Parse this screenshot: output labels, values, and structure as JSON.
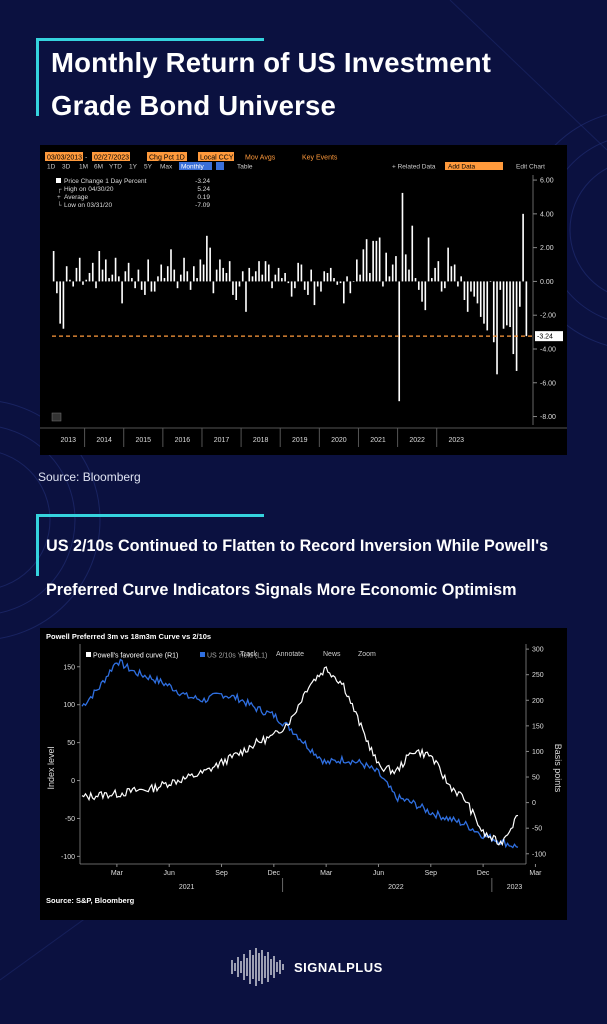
{
  "chart1": {
    "title": "Monthly Return of US Investment Grade Bond Universe",
    "title_line1": "Monthly Return of US Investment",
    "title_line2": "Grade Bond Universe",
    "source": "Source: Bloomberg",
    "toolbar": {
      "start_date": "03/03/2013",
      "end_date": "02/27/2023",
      "metric": "Chg Pct 1D",
      "currency": "Local CCY",
      "mov_avgs": "Mov Avgs",
      "key_events": "Key Events",
      "periods": [
        "1D",
        "3D",
        "1M",
        "6M",
        "YTD",
        "1Y",
        "5Y",
        "Max"
      ],
      "frequency": "Monthly",
      "table": "Table",
      "related_data": "+ Related Data",
      "add_data": "Add Data",
      "edit_chart": "Edit Chart"
    },
    "legend": [
      {
        "label": "Price Change 1 Day Percent",
        "value": "-3.24"
      },
      {
        "label": "High on 04/30/20",
        "value": "5.24"
      },
      {
        "label": "Average",
        "value": "0.19"
      },
      {
        "label": "Low on 03/31/20",
        "value": "-7.09"
      }
    ],
    "last_value_label": "-3.24",
    "colors": {
      "bars": "#ffffff",
      "reference_line": "#ff9a3c",
      "toolbar_orange": "#ff9a3c",
      "toolbar_blue": "#3a6fd8"
    }
  },
  "chart2": {
    "title": "US 2/10s Continued to Flatten to Record Inversion While Powell's Preferred Curve Indicators Signals More Economic Optimism",
    "title_line1": "US 2/10s Continued to Flatten to Record Inversion While Powell's",
    "title_line2": "Preferred Curve Indicators Signals More Economic Optimism",
    "panel_title": "Powell Preferred 3m vs 18m3m Curve vs 2/10s",
    "legend": [
      {
        "label": "Powell's favored curve (R1)",
        "color": "#ffffff"
      },
      {
        "label": "US 2/10s Yield (L1)",
        "color": "#2f6fe0"
      }
    ],
    "toolbar": [
      "Track",
      "Annotate",
      "News",
      "Zoom"
    ],
    "ylabel_left": "Index level",
    "ylabel_right": "Basis points",
    "source": "Source: S&P, Bloomberg",
    "colors": {
      "powell": "#ffffff",
      "us210": "#2f6fe0"
    }
  },
  "brand": {
    "name": "SIGNALPLUS"
  },
  "chart_data": [
    {
      "type": "bar",
      "title": "Monthly Return of US Investment Grade Bond Universe",
      "ylabel": "",
      "xlabel": "",
      "x_tick_labels": [
        "2013",
        "2014",
        "2015",
        "2016",
        "2017",
        "2018",
        "2019",
        "2020",
        "2021",
        "2022",
        "2023"
      ],
      "y_tick_labels": [
        "6.00",
        "4.00",
        "2.00",
        "0.00",
        "-2.00",
        "-4.00",
        "-6.00",
        "-8.00"
      ],
      "ylim": [
        -8.5,
        6.3
      ],
      "reference_line": -3.24,
      "series": [
        {
          "values": [
            1.8,
            -0.7,
            -2.5,
            -2.8,
            0.9,
            0.1,
            -0.3,
            0.8,
            1.4,
            -0.2,
            0.1,
            0.5,
            1.1,
            -0.4,
            1.8,
            0.7,
            1.3,
            0.2,
            0.4,
            1.4,
            0.3,
            -1.3,
            0.6,
            1.1,
            0.2,
            -0.4,
            0.7,
            -0.5,
            -0.8,
            1.3,
            -0.6,
            -0.6,
            0.3,
            1.0,
            0.2,
            0.9,
            1.9,
            0.7,
            -0.4,
            0.4,
            1.4,
            0.6,
            -0.5,
            0.9,
            0.2,
            1.3,
            1.0,
            2.7,
            2.0,
            -0.7,
            0.7,
            1.3,
            0.8,
            0.5,
            1.2,
            -0.8,
            -1.1,
            -0.3,
            0.6,
            -1.8,
            0.8,
            0.3,
            0.6,
            1.2,
            0.4,
            1.2,
            1.0,
            -0.4,
            0.4,
            0.8,
            0.2,
            0.5,
            -0.1,
            -0.9,
            -0.4,
            1.1,
            1.0,
            -0.5,
            -0.8,
            0.7,
            -1.4,
            -0.3,
            -0.6,
            0.6,
            0.5,
            0.8,
            0.2,
            -0.2,
            -0.1,
            -1.3,
            0.3,
            -0.7,
            0.0,
            1.3,
            0.4,
            1.9,
            2.5,
            0.5,
            2.4,
            2.4,
            2.6,
            -0.3,
            1.7,
            0.3,
            1.0,
            1.5,
            -7.09,
            5.24,
            1.6,
            0.7,
            3.3,
            0.2,
            -0.5,
            -1.2,
            -1.7,
            2.6,
            0.2,
            0.8,
            1.2,
            -0.6,
            -0.4,
            2.0,
            0.9,
            1.0,
            -0.3,
            0.3,
            -1.1,
            -1.8,
            -0.6,
            -0.9,
            -1.3,
            -2.1,
            -2.5,
            -2.9,
            0.0,
            -3.6,
            -5.5,
            -0.5,
            -2.8,
            -2.6,
            -2.7,
            -4.3,
            -5.3,
            -1.5,
            4.0,
            -3.24
          ]
        }
      ]
    },
    {
      "type": "line",
      "title": "Powell Preferred 3m vs 18m3m Curve vs 2/10s",
      "ylabel": "Index level",
      "ylabel_right": "Basis points",
      "y_tick_labels": [
        "150",
        "100",
        "50",
        "0",
        "-50",
        "-100"
      ],
      "y2_tick_labels": [
        "300",
        "250",
        "200",
        "150",
        "100",
        "50",
        "0",
        "-50",
        "-100"
      ],
      "ylim": [
        -110,
        180
      ],
      "y2lim": [
        -120,
        310
      ],
      "x_tick_labels": [
        "Mar",
        "Jun",
        "Sep",
        "Dec",
        "Mar",
        "Jun",
        "Sep",
        "Dec",
        "Mar"
      ],
      "x_year_labels": [
        "2021",
        "2022",
        "2023"
      ],
      "x_months": [
        "2021-01",
        "2021-02",
        "2021-03",
        "2021-04",
        "2021-05",
        "2021-06",
        "2021-07",
        "2021-08",
        "2021-09",
        "2021-10",
        "2021-11",
        "2021-12",
        "2022-01",
        "2022-02",
        "2022-03",
        "2022-04",
        "2022-05",
        "2022-06",
        "2022-07",
        "2022-08",
        "2022-09",
        "2022-10",
        "2022-11",
        "2022-12",
        "2023-01",
        "2023-02"
      ],
      "series": [
        {
          "name": "US 2/10s Yield (L1)",
          "axis": "left",
          "values": [
            98,
            123,
            158,
            143,
            135,
            125,
            111,
            106,
            114,
            108,
            95,
            86,
            68,
            44,
            23,
            28,
            23,
            10,
            -22,
            -30,
            -42,
            -50,
            -58,
            -72,
            -80,
            -88
          ]
        },
        {
          "name": "Powell's favored curve (R1)",
          "axis": "right",
          "values": [
            10,
            15,
            17,
            23,
            27,
            39,
            48,
            59,
            78,
            96,
            117,
            130,
            163,
            230,
            263,
            230,
            148,
            72,
            60,
            102,
            92,
            36,
            5,
            -60,
            -80,
            -25
          ]
        }
      ]
    }
  ]
}
